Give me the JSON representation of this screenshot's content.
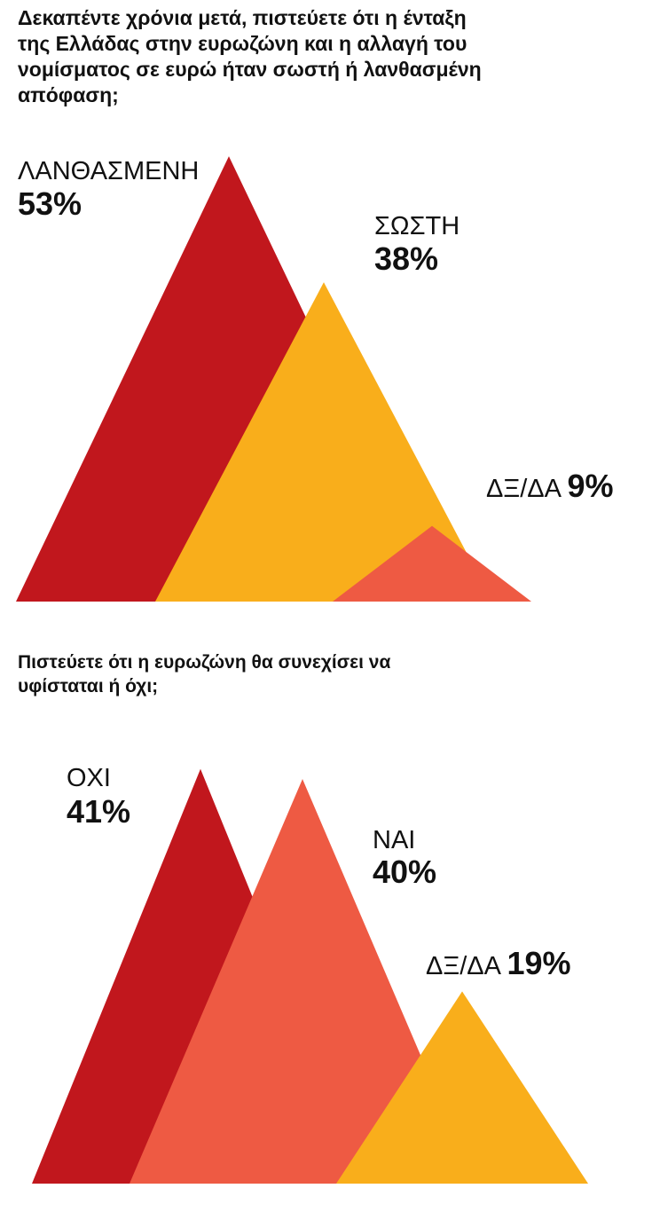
{
  "chart_data": [
    {
      "type": "triangle-bar",
      "title": "Δεκαπέντε χρόνια μετά, πιστεύετε ότι η ένταξη\nτης Ελλάδας στην ευρωζώνη και η αλλαγή του\nνομίσματος σε ευρώ ήταν σωστή ή λανθασμένη\nαπόφαση;",
      "categories": [
        "ΛΑΝΘΑΣΜΕΝΗ",
        "ΣΩΣΤΗ",
        "ΔΞ/ΔΑ"
      ],
      "values": [
        53,
        38,
        9
      ],
      "value_labels": [
        "53%",
        "38%",
        "9%"
      ],
      "colors": [
        "#C1171D",
        "#F9AE1B",
        "#EE5A43"
      ]
    },
    {
      "type": "triangle-bar",
      "title": "Πιστεύετε ότι η ευρωζώνη θα συνεχίσει να\nυφίσταται ή όχι;",
      "categories": [
        "ΟΧΙ",
        "ΝΑΙ",
        "ΔΞ/ΔΑ"
      ],
      "values": [
        41,
        40,
        19
      ],
      "value_labels": [
        "41%",
        "40%",
        "19%"
      ],
      "colors": [
        "#C1171D",
        "#EE5A43",
        "#F9AE1B"
      ]
    }
  ]
}
